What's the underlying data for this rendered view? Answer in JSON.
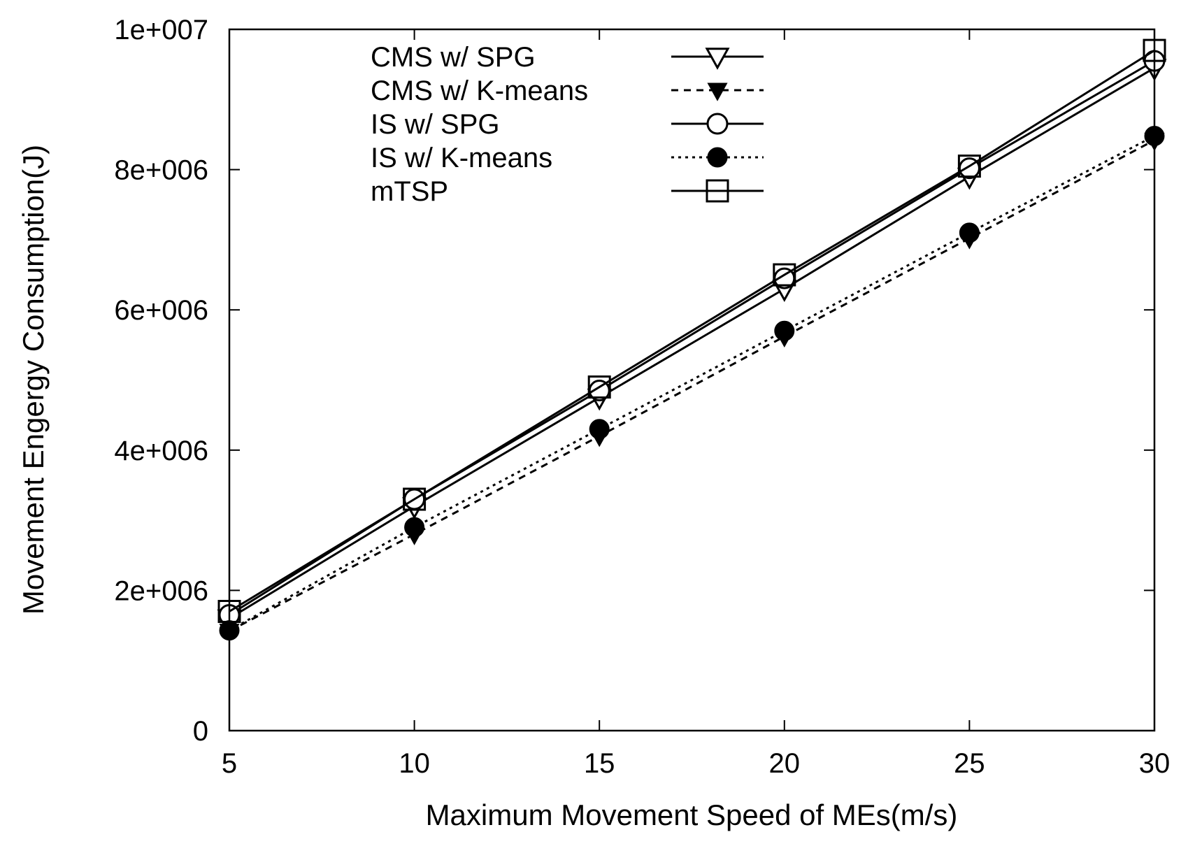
{
  "chart_data": {
    "type": "line",
    "title": "",
    "xlabel": "Maximum Movement Speed of MEs(m/s)",
    "ylabel": "Movement Engergy Consumption(J)",
    "xlim": [
      5,
      30
    ],
    "ylim": [
      0,
      10000000
    ],
    "x": [
      5,
      10,
      15,
      20,
      25,
      30
    ],
    "x_ticks": [
      5,
      10,
      15,
      20,
      25,
      30
    ],
    "x_tick_labels": [
      "5",
      "10",
      "15",
      "20",
      "25",
      "30"
    ],
    "y_ticks": [
      0,
      2000000,
      4000000,
      6000000,
      8000000,
      10000000
    ],
    "y_tick_labels": [
      "0",
      "2e+006",
      "4e+006",
      "6e+006",
      "8e+006",
      "1e+007"
    ],
    "grid": false,
    "legend_position": "top-center",
    "series": [
      {
        "name": "CMS w/ SPG",
        "line_style": "solid",
        "marker": "triangle-down-open",
        "values": [
          1600000,
          3200000,
          4750000,
          6300000,
          7900000,
          9450000
        ]
      },
      {
        "name": "CMS w/ K-means",
        "line_style": "dashed",
        "marker": "triangle-down-filled",
        "values": [
          1420000,
          2800000,
          4200000,
          5620000,
          7020000,
          8420000
        ]
      },
      {
        "name": "IS w/ SPG",
        "line_style": "solid",
        "marker": "circle-open",
        "values": [
          1650000,
          3300000,
          4850000,
          6450000,
          8020000,
          9550000
        ]
      },
      {
        "name": "IS w/ K-means",
        "line_style": "dotted",
        "marker": "circle-filled",
        "values": [
          1430000,
          2900000,
          4300000,
          5700000,
          7100000,
          8480000
        ]
      },
      {
        "name": "mTSP",
        "line_style": "solid",
        "marker": "square-open",
        "values": [
          1700000,
          3300000,
          4900000,
          6500000,
          8050000,
          9700000
        ]
      }
    ]
  }
}
